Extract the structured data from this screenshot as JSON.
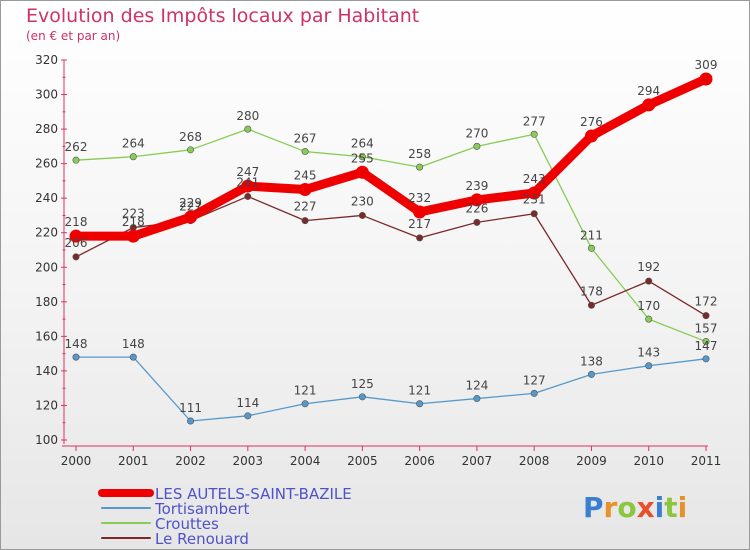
{
  "chart_data": {
    "type": "line",
    "title": "Evolution des Impôts locaux par Habitant",
    "subtitle": "(en € et par an)",
    "x": [
      "2000",
      "2001",
      "2002",
      "2003",
      "2004",
      "2005",
      "2006",
      "2007",
      "2008",
      "2009",
      "2010",
      "2011"
    ],
    "ylim": [
      100,
      320
    ],
    "yticks": [
      100,
      120,
      140,
      160,
      180,
      200,
      220,
      240,
      260,
      280,
      300,
      320
    ],
    "grid": false,
    "legend_position": "bottom-left",
    "series": [
      {
        "name": "LES AUTELS-SAINT-BAZILE",
        "color": "#ee0000",
        "values": [
          218,
          218,
          229,
          247,
          245,
          255,
          232,
          239,
          243,
          276,
          294,
          309
        ]
      },
      {
        "name": "Tortisambert",
        "color": "#5599cc",
        "values": [
          148,
          148,
          111,
          114,
          121,
          125,
          121,
          124,
          127,
          138,
          143,
          147
        ]
      },
      {
        "name": "Crouttes",
        "color": "#88cc55",
        "values": [
          262,
          264,
          268,
          280,
          267,
          264,
          258,
          270,
          277,
          211,
          170,
          157
        ]
      },
      {
        "name": "Le Renouard",
        "color": "#7a2a2a",
        "values": [
          206,
          223,
          227,
          241,
          227,
          230,
          217,
          226,
          231,
          178,
          192,
          172
        ]
      }
    ]
  },
  "brand": {
    "name": "Proxiti"
  }
}
